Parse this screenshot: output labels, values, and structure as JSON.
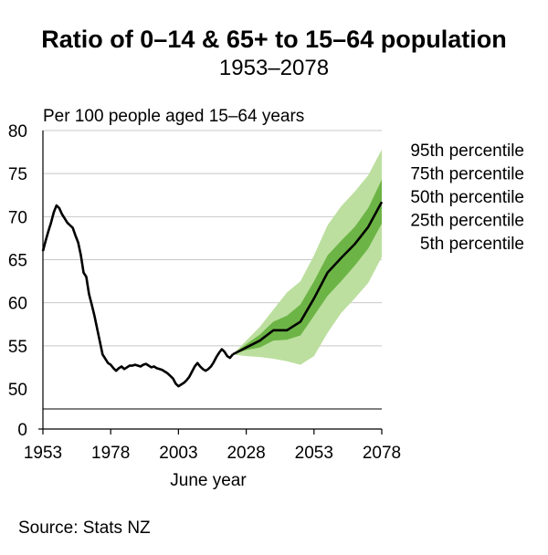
{
  "chart_data": {
    "type": "line",
    "title": "Ratio of 0–14 & 65+ to 15–64 population",
    "subtitle": "1953–2078",
    "ylabel": "Per 100 people aged 15–64 years",
    "xlabel": "June year",
    "source": "Source: Stats NZ",
    "ylim": [
      50,
      80
    ],
    "xlim": [
      1953,
      2078
    ],
    "y_ticks": [
      "80",
      "75",
      "70",
      "65",
      "60",
      "55",
      "50"
    ],
    "y_tick_values": [
      80,
      75,
      70,
      65,
      60,
      55,
      50
    ],
    "y_break_tick": "0",
    "x_ticks": [
      "1953",
      "1978",
      "2003",
      "2028",
      "2053",
      "2078"
    ],
    "x_tick_values": [
      1953,
      1978,
      2003,
      2028,
      2053,
      2078
    ],
    "legend": [
      "95th percentile",
      "75th percentile",
      "50th percentile",
      "25th percentile",
      "5th percentile"
    ],
    "colors": {
      "band_outer": "#bcdf9f",
      "band_inner": "#6db446",
      "line": "#000000",
      "grid": "#c8c8c8"
    },
    "historical": {
      "x": [
        1953,
        1954,
        1955,
        1956,
        1957,
        1958,
        1959,
        1960,
        1961,
        1962,
        1963,
        1964,
        1965,
        1966,
        1967,
        1968,
        1969,
        1970,
        1971,
        1972,
        1973,
        1974,
        1975,
        1976,
        1977,
        1978,
        1979,
        1980,
        1981,
        1982,
        1983,
        1984,
        1985,
        1986,
        1987,
        1988,
        1989,
        1990,
        1991,
        1992,
        1993,
        1994,
        1995,
        1996,
        1997,
        1998,
        1999,
        2000,
        2001,
        2002,
        2003,
        2004,
        2005,
        2006,
        2007,
        2008,
        2009,
        2010,
        2011,
        2012,
        2013,
        2014,
        2015,
        2016,
        2017,
        2018,
        2019,
        2020,
        2021,
        2022,
        2023
      ],
      "y": [
        66.0,
        67.2,
        68.3,
        69.3,
        70.5,
        71.3,
        71.0,
        70.3,
        69.8,
        69.3,
        69.0,
        68.7,
        67.8,
        67.0,
        65.5,
        63.5,
        63.0,
        61.0,
        59.8,
        58.5,
        57.0,
        55.5,
        54.0,
        53.5,
        53.0,
        52.8,
        52.4,
        52.1,
        52.4,
        52.6,
        52.3,
        52.5,
        52.7,
        52.7,
        52.8,
        52.7,
        52.6,
        52.8,
        52.9,
        52.7,
        52.5,
        52.6,
        52.4,
        52.3,
        52.2,
        52.0,
        51.8,
        51.5,
        51.2,
        50.6,
        50.3,
        50.5,
        50.7,
        51.0,
        51.4,
        52.0,
        52.6,
        53.0,
        52.6,
        52.3,
        52.1,
        52.3,
        52.6,
        53.1,
        53.7,
        54.2,
        54.6,
        54.3,
        53.8,
        53.6,
        54.0
      ]
    },
    "projection": {
      "x": [
        2023,
        2028,
        2033,
        2038,
        2043,
        2048,
        2053,
        2058,
        2063,
        2068,
        2073,
        2078
      ],
      "p95": [
        54.0,
        55.6,
        57.2,
        59.2,
        61.2,
        62.5,
        65.5,
        69.0,
        71.2,
        72.9,
        74.8,
        77.8
      ],
      "p75": [
        54.0,
        55.2,
        56.3,
        57.8,
        58.5,
        59.8,
        62.5,
        65.5,
        67.2,
        68.8,
        71.0,
        74.3
      ],
      "p50": [
        54.0,
        54.8,
        55.6,
        56.8,
        56.8,
        57.8,
        60.5,
        63.5,
        65.2,
        66.8,
        68.8,
        71.7
      ],
      "p25": [
        54.0,
        54.5,
        54.8,
        55.6,
        55.7,
        56.2,
        58.5,
        60.8,
        62.5,
        64.3,
        66.3,
        69.2
      ],
      "p5": [
        54.0,
        53.8,
        53.7,
        53.5,
        53.2,
        52.8,
        53.8,
        56.5,
        58.8,
        60.5,
        62.3,
        65.3
      ]
    }
  }
}
